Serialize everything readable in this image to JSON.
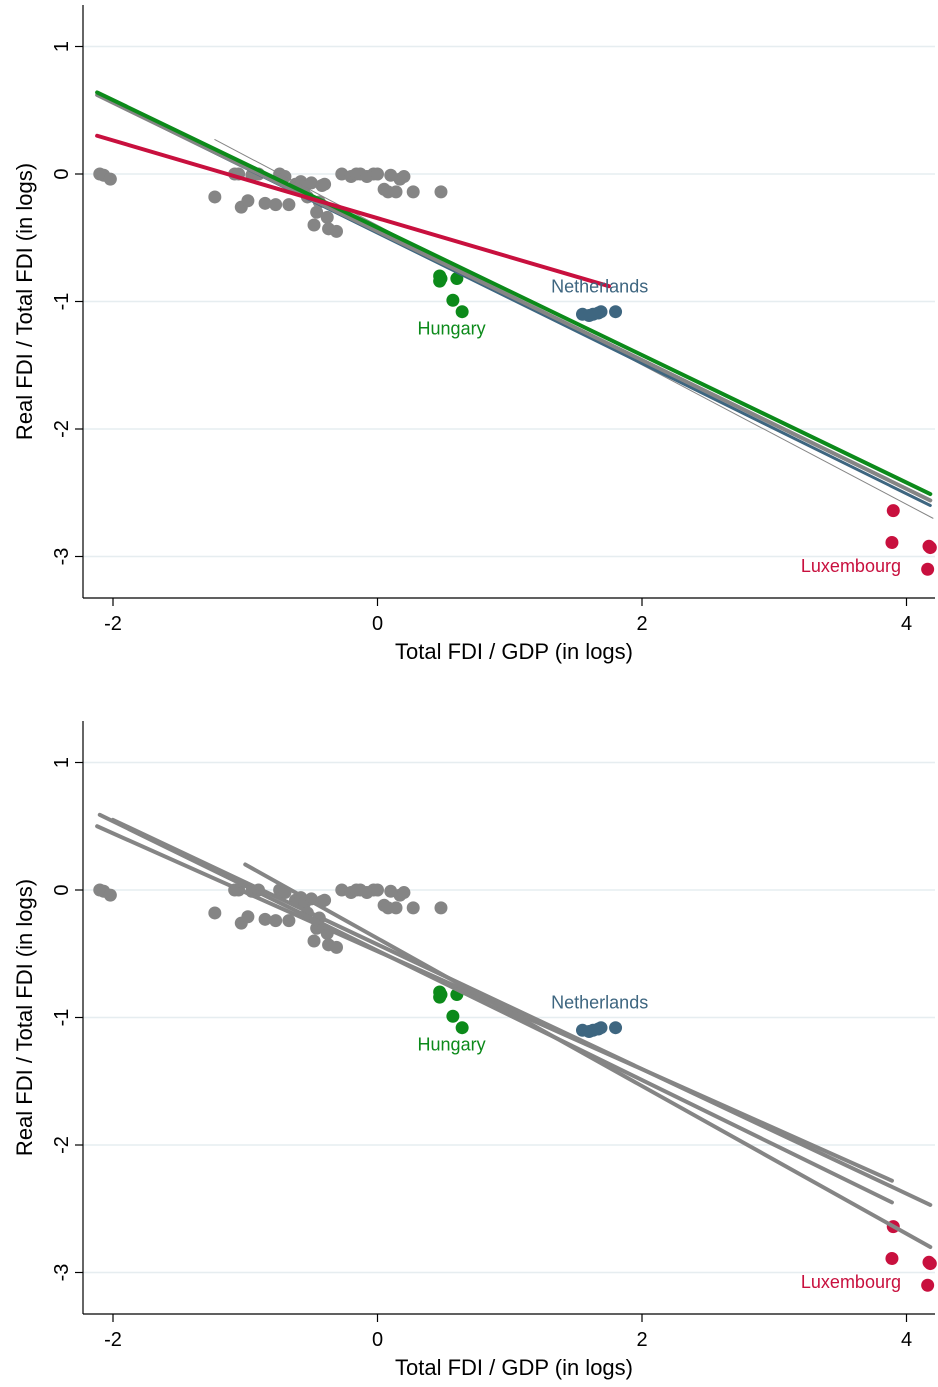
{
  "colors": {
    "gray": "#858585",
    "green": "#0c8a1a",
    "blue": "#3e6680",
    "red": "#c8103e",
    "grid": "#e6edf0"
  },
  "chart_data": [
    {
      "type": "scatter",
      "xlabel": "Total FDI / GDP  (in logs)",
      "ylabel": "Real FDI / Total FDI (in logs)",
      "xlim": [
        -2.2,
        4.2
      ],
      "ylim": [
        -3.35,
        1.3
      ],
      "xticks": [
        -2,
        0,
        2,
        4
      ],
      "yticks": [
        -3,
        -2,
        -1,
        0,
        1
      ],
      "grid": true,
      "labels": [
        {
          "text": "Netherlands",
          "x": 1.68,
          "y": -0.93,
          "color": "blue"
        },
        {
          "text": "Hungary",
          "x": 0.56,
          "y": -1.26,
          "color": "green"
        },
        {
          "text": "Luxembourg",
          "x": 3.58,
          "y": -3.12,
          "color": "red"
        }
      ],
      "series": [
        {
          "color": "gray",
          "points": [
            [
              -2.1,
              0.0
            ],
            [
              -2.07,
              -0.01
            ],
            [
              -2.02,
              -0.04
            ],
            [
              -1.23,
              -0.18
            ],
            [
              -1.08,
              0.0
            ],
            [
              -1.05,
              0.0
            ],
            [
              -1.03,
              -0.26
            ],
            [
              -0.98,
              -0.21
            ],
            [
              -0.95,
              -0.01
            ],
            [
              -0.9,
              0.0
            ],
            [
              -0.85,
              -0.23
            ],
            [
              -0.77,
              -0.24
            ],
            [
              -0.74,
              0.0
            ],
            [
              -0.7,
              -0.02
            ],
            [
              -0.67,
              -0.24
            ],
            [
              -0.62,
              -0.08
            ],
            [
              -0.58,
              -0.06
            ],
            [
              -0.55,
              -0.1
            ],
            [
              -0.53,
              -0.18
            ],
            [
              -0.5,
              -0.07
            ],
            [
              -0.48,
              -0.4
            ],
            [
              -0.46,
              -0.3
            ],
            [
              -0.44,
              -0.22
            ],
            [
              -0.42,
              -0.09
            ],
            [
              -0.4,
              -0.08
            ],
            [
              -0.38,
              -0.34
            ],
            [
              -0.37,
              -0.43
            ],
            [
              -0.31,
              -0.45
            ],
            [
              -0.27,
              0.0
            ],
            [
              -0.2,
              -0.02
            ],
            [
              -0.16,
              0.0
            ],
            [
              -0.13,
              0.0
            ],
            [
              -0.08,
              -0.02
            ],
            [
              -0.03,
              0.0
            ],
            [
              0.0,
              0.0
            ],
            [
              0.05,
              -0.12
            ],
            [
              0.08,
              -0.14
            ],
            [
              0.1,
              -0.01
            ],
            [
              0.14,
              -0.14
            ],
            [
              0.17,
              -0.04
            ],
            [
              0.2,
              -0.02
            ],
            [
              0.27,
              -0.14
            ],
            [
              0.48,
              -0.14
            ]
          ]
        },
        {
          "color": "green",
          "points": [
            [
              0.47,
              -0.8
            ],
            [
              0.47,
              -0.84
            ],
            [
              0.48,
              -0.82
            ],
            [
              0.6,
              -0.82
            ],
            [
              0.57,
              -0.99
            ],
            [
              0.64,
              -1.08
            ]
          ]
        },
        {
          "color": "blue",
          "points": [
            [
              1.55,
              -1.1
            ],
            [
              1.6,
              -1.11
            ],
            [
              1.63,
              -1.1
            ],
            [
              1.67,
              -1.09
            ],
            [
              1.69,
              -1.08
            ],
            [
              1.8,
              -1.08
            ]
          ]
        },
        {
          "color": "red",
          "points": [
            [
              3.9,
              -2.64
            ],
            [
              3.89,
              -2.89
            ],
            [
              4.17,
              -2.92
            ],
            [
              4.18,
              -2.93
            ],
            [
              4.16,
              -3.1
            ]
          ]
        }
      ],
      "lines": [
        {
          "color": "gray",
          "width": 1,
          "from": [
            -1.23,
            0.27
          ],
          "to": [
            4.2,
            -2.7
          ]
        },
        {
          "color": "blue",
          "width": 3,
          "from": [
            -2.12,
            0.62
          ],
          "to": [
            4.18,
            -2.6
          ]
        },
        {
          "color": "gray",
          "width": 4,
          "from": [
            -2.12,
            0.62
          ],
          "to": [
            4.18,
            -2.56
          ]
        },
        {
          "color": "green",
          "width": 4,
          "from": [
            -2.12,
            0.64
          ],
          "to": [
            4.18,
            -2.51
          ]
        },
        {
          "color": "red",
          "width": 4,
          "from": [
            -2.12,
            0.3
          ],
          "to": [
            1.75,
            -0.88
          ]
        }
      ]
    },
    {
      "type": "scatter",
      "xlabel": "Total FDI / GDP  (in logs)",
      "ylabel": "Real FDI / Total FDI (in logs)",
      "xlim": [
        -2.2,
        4.2
      ],
      "ylim": [
        -3.35,
        1.3
      ],
      "xticks": [
        -2,
        0,
        2,
        4
      ],
      "yticks": [
        -3,
        -2,
        -1,
        0,
        1
      ],
      "grid": true,
      "labels": [
        {
          "text": "Netherlands",
          "x": 1.68,
          "y": -0.93,
          "color": "blue"
        },
        {
          "text": "Hungary",
          "x": 0.56,
          "y": -1.26,
          "color": "green"
        },
        {
          "text": "Luxembourg",
          "x": 3.58,
          "y": -3.12,
          "color": "red"
        }
      ],
      "series": [
        {
          "color": "gray",
          "points": [
            [
              -2.1,
              0.0
            ],
            [
              -2.07,
              -0.01
            ],
            [
              -2.02,
              -0.04
            ],
            [
              -1.23,
              -0.18
            ],
            [
              -1.08,
              0.0
            ],
            [
              -1.05,
              0.0
            ],
            [
              -1.03,
              -0.26
            ],
            [
              -0.98,
              -0.21
            ],
            [
              -0.95,
              -0.01
            ],
            [
              -0.9,
              0.0
            ],
            [
              -0.85,
              -0.23
            ],
            [
              -0.77,
              -0.24
            ],
            [
              -0.74,
              0.0
            ],
            [
              -0.7,
              -0.02
            ],
            [
              -0.67,
              -0.24
            ],
            [
              -0.62,
              -0.08
            ],
            [
              -0.58,
              -0.06
            ],
            [
              -0.55,
              -0.1
            ],
            [
              -0.53,
              -0.18
            ],
            [
              -0.5,
              -0.07
            ],
            [
              -0.48,
              -0.4
            ],
            [
              -0.46,
              -0.3
            ],
            [
              -0.44,
              -0.22
            ],
            [
              -0.42,
              -0.09
            ],
            [
              -0.4,
              -0.08
            ],
            [
              -0.38,
              -0.34
            ],
            [
              -0.37,
              -0.43
            ],
            [
              -0.31,
              -0.45
            ],
            [
              -0.27,
              0.0
            ],
            [
              -0.2,
              -0.02
            ],
            [
              -0.16,
              0.0
            ],
            [
              -0.13,
              0.0
            ],
            [
              -0.08,
              -0.02
            ],
            [
              -0.03,
              0.0
            ],
            [
              0.0,
              0.0
            ],
            [
              0.05,
              -0.12
            ],
            [
              0.08,
              -0.14
            ],
            [
              0.1,
              -0.01
            ],
            [
              0.14,
              -0.14
            ],
            [
              0.17,
              -0.04
            ],
            [
              0.2,
              -0.02
            ],
            [
              0.27,
              -0.14
            ],
            [
              0.48,
              -0.14
            ]
          ]
        },
        {
          "color": "green",
          "points": [
            [
              0.47,
              -0.8
            ],
            [
              0.47,
              -0.84
            ],
            [
              0.48,
              -0.82
            ],
            [
              0.6,
              -0.82
            ],
            [
              0.57,
              -0.99
            ],
            [
              0.64,
              -1.08
            ]
          ]
        },
        {
          "color": "blue",
          "points": [
            [
              1.55,
              -1.1
            ],
            [
              1.6,
              -1.11
            ],
            [
              1.63,
              -1.1
            ],
            [
              1.67,
              -1.09
            ],
            [
              1.69,
              -1.08
            ],
            [
              1.8,
              -1.08
            ]
          ]
        },
        {
          "color": "red",
          "points": [
            [
              3.9,
              -2.64
            ],
            [
              3.89,
              -2.89
            ],
            [
              4.17,
              -2.92
            ],
            [
              4.18,
              -2.93
            ],
            [
              4.16,
              -3.1
            ]
          ]
        }
      ],
      "lines": [
        {
          "color": "gray",
          "width": 4,
          "from": [
            -2.12,
            0.5
          ],
          "to": [
            3.89,
            -2.28
          ]
        },
        {
          "color": "gray",
          "width": 4,
          "from": [
            -2.1,
            0.59
          ],
          "to": [
            3.89,
            -2.45
          ]
        },
        {
          "color": "gray",
          "width": 4,
          "from": [
            -2.0,
            0.55
          ],
          "to": [
            4.18,
            -2.47
          ]
        },
        {
          "color": "gray",
          "width": 4,
          "from": [
            -1.0,
            0.2
          ],
          "to": [
            4.18,
            -2.8
          ]
        }
      ]
    }
  ]
}
